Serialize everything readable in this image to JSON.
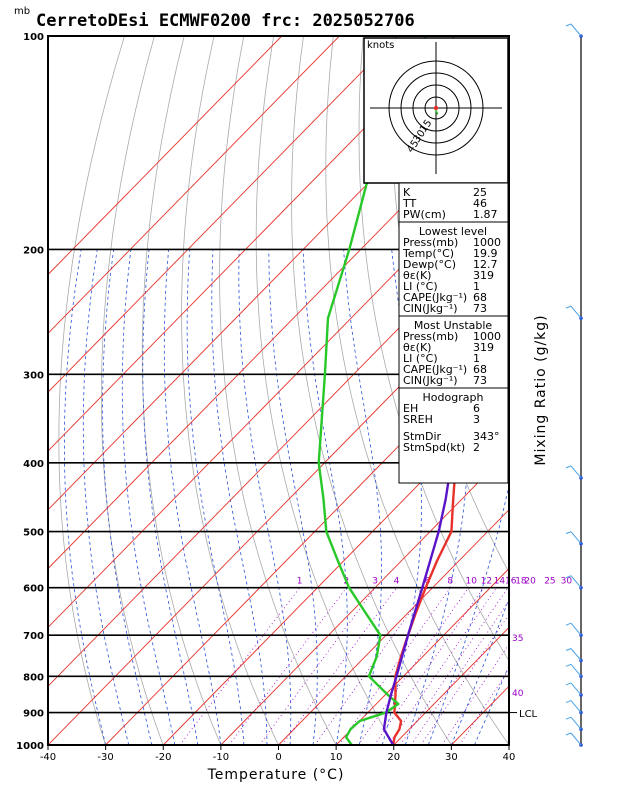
{
  "title": "CerretoDEsi ECMWF0200  frc: 2025052706",
  "pressure_unit": "mb",
  "chart_data": {
    "type": "line",
    "title": "CerretoDEsi ECMWF0200  frc: 2025052706",
    "xlabel": "Temperature (°C)",
    "ylabel": "",
    "right_label": "Mixing Ratio (g/kg)",
    "xlim": [
      -40,
      40
    ],
    "ylim": [
      1000,
      100
    ],
    "y_log": true,
    "x_ticks": [
      "-40",
      "-30",
      "-20",
      "-10",
      "0",
      "10",
      "20",
      "30",
      "40"
    ],
    "p_ticks": [
      {
        "p": 100,
        "label": "100"
      },
      {
        "p": 200,
        "label": "200"
      },
      {
        "p": 300,
        "label": "300"
      },
      {
        "p": 400,
        "label": "400"
      },
      {
        "p": 500,
        "label": "500"
      },
      {
        "p": 600,
        "label": "600"
      },
      {
        "p": 700,
        "label": "700"
      },
      {
        "p": 800,
        "label": "800"
      },
      {
        "p": 900,
        "label": "900"
      },
      {
        "p": 1000,
        "label": "1000"
      }
    ],
    "mixing_labels": [
      "1",
      "2",
      "3",
      "4",
      "6",
      "8",
      "10",
      "12",
      "14",
      "16",
      "18",
      "20",
      "25",
      "30"
    ],
    "theta_labels": [
      "35",
      "40"
    ],
    "lcl_label": "LCL",
    "lcl_p": 900,
    "series": [
      {
        "key": "temperature",
        "color": "#e8312b",
        "points": [
          [
            1000,
            19.9
          ],
          [
            975,
            18.8
          ],
          [
            950,
            18.3
          ],
          [
            925,
            17.2
          ],
          [
            900,
            14.6
          ],
          [
            850,
            11.8
          ],
          [
            800,
            8.6
          ],
          [
            750,
            6.2
          ],
          [
            700,
            3.8
          ],
          [
            650,
            1.3
          ],
          [
            600,
            -1.2
          ],
          [
            550,
            -3.8
          ],
          [
            500,
            -6.3
          ],
          [
            450,
            -11.5
          ],
          [
            400,
            -17.2
          ],
          [
            350,
            -24.5
          ],
          [
            300,
            -32.8
          ],
          [
            275,
            -37.0
          ],
          [
            250,
            -41.0
          ],
          [
            240,
            -42.5
          ],
          [
            220,
            -39.5
          ],
          [
            200,
            -36.0
          ],
          [
            150,
            -26.0
          ],
          [
            100,
            -13.0
          ]
        ]
      },
      {
        "key": "dewpoint",
        "color": "#28c828",
        "points": [
          [
            1000,
            12.7
          ],
          [
            975,
            10.4
          ],
          [
            950,
            9.8
          ],
          [
            925,
            10.0
          ],
          [
            900,
            13.1
          ],
          [
            875,
            13.8
          ],
          [
            850,
            10.5
          ],
          [
            800,
            4.0
          ],
          [
            750,
            2.0
          ],
          [
            700,
            -1.0
          ],
          [
            650,
            -7.5
          ],
          [
            600,
            -14.5
          ],
          [
            550,
            -21.0
          ],
          [
            500,
            -28.0
          ],
          [
            450,
            -34.0
          ],
          [
            400,
            -41.0
          ],
          [
            350,
            -47.5
          ],
          [
            300,
            -55.0
          ],
          [
            250,
            -64.0
          ],
          [
            200,
            -72.0
          ],
          [
            150,
            -83.0
          ],
          [
            120,
            -90.0
          ],
          [
            100,
            -95.0
          ]
        ]
      },
      {
        "key": "parcel",
        "color": "#5a14c8",
        "points": [
          [
            1000,
            19.9
          ],
          [
            950,
            15.6
          ],
          [
            900,
            13.2
          ],
          [
            850,
            11.0
          ],
          [
            800,
            8.8
          ],
          [
            700,
            3.8
          ],
          [
            600,
            -1.8
          ],
          [
            500,
            -8.5
          ],
          [
            450,
            -12.8
          ],
          [
            400,
            -18.0
          ],
          [
            350,
            -24.5
          ],
          [
            300,
            -32.5
          ],
          [
            250,
            -42.5
          ],
          [
            200,
            -55.0
          ],
          [
            160,
            -65.5
          ],
          [
            130,
            -75.5
          ],
          [
            115,
            -81.0
          ]
        ]
      }
    ]
  },
  "hodograph": {
    "label": "knots",
    "ring_labels": [
      "15",
      "30",
      "45"
    ],
    "wind_points": [
      [
        -1,
        2
      ],
      [
        0,
        3
      ],
      [
        1,
        5
      ],
      [
        2,
        8
      ]
    ]
  },
  "indices": {
    "k_label": "K",
    "k_value": "25",
    "tt_label": "TT",
    "tt_value": "46",
    "pw_label": "PW(cm)",
    "pw_value": "1.87"
  },
  "lowest_level": {
    "header": "Lowest level",
    "rows": [
      {
        "label": "Press(mb)",
        "value": "1000"
      },
      {
        "label": "Temp(°C)",
        "value": "19.9"
      },
      {
        "label": "Dewp(°C)",
        "value": "12.7"
      },
      {
        "label": "θε(K)",
        "value": "319"
      },
      {
        "label": "LI (°C)",
        "value": "1"
      },
      {
        "label": "CAPE(Jkg⁻¹)",
        "value": "68"
      },
      {
        "label": "CIN(Jkg⁻¹)",
        "value": "73"
      }
    ]
  },
  "most_unstable": {
    "header": "Most Unstable",
    "rows": [
      {
        "label": "Press(mb)",
        "value": "1000"
      },
      {
        "label": "θε(K)",
        "value": "319"
      },
      {
        "label": "LI (°C)",
        "value": "1"
      },
      {
        "label": "CAPE(Jkg⁻¹)",
        "value": "68"
      },
      {
        "label": "CIN(Jkg⁻¹)",
        "value": "73"
      }
    ]
  },
  "hodo_table": {
    "header": "Hodograph",
    "rows": [
      {
        "label": "EH",
        "value": "6"
      },
      {
        "label": "SREH",
        "value": "3"
      },
      {
        "label": "StmDir",
        "value": "343°"
      },
      {
        "label": "StmSpd(kt)",
        "value": "2"
      }
    ]
  },
  "colors": {
    "isotherm": "#e8312b",
    "dry_adiabat": "#aaaaaa",
    "moist_adiabat": "#2a52d6",
    "mixing_ratio": "#9b00c8",
    "wind_profile": "#4aa3e8"
  },
  "wind_barbs": [
    100,
    250,
    420,
    520,
    600,
    700,
    760,
    800,
    850,
    900,
    950,
    1000
  ]
}
